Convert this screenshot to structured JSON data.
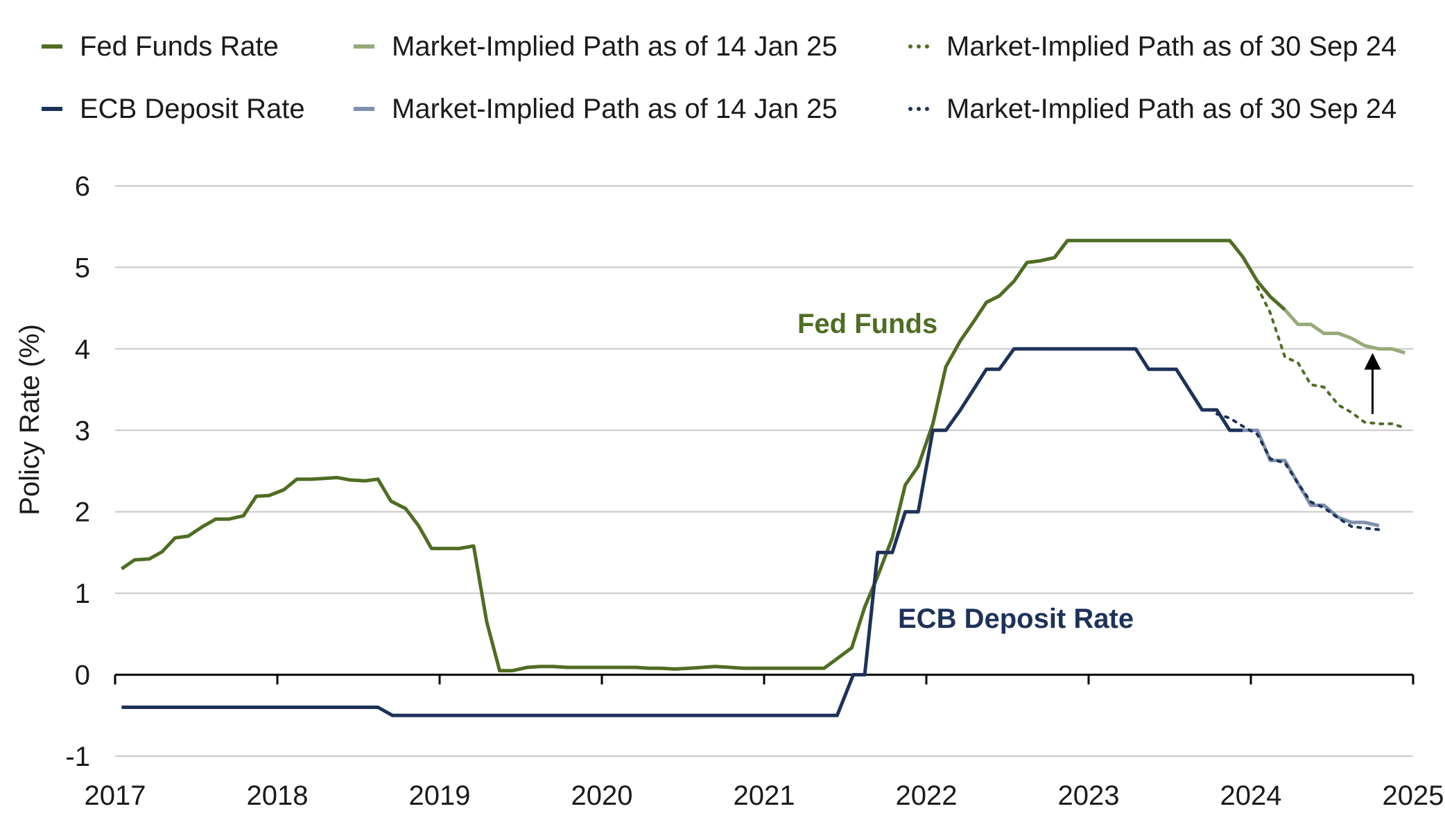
{
  "legend": [
    {
      "label": "Fed Funds Rate",
      "color": "#4f6d23",
      "style": "solid"
    },
    {
      "label": "Market-Implied Path as of 14 Jan 25",
      "color": "#97ab7a",
      "style": "solid"
    },
    {
      "label": "Market-Implied Path as of 30 Sep 24",
      "color": "#4f6d23",
      "style": "dotted"
    },
    {
      "label": "ECB Deposit Rate",
      "color": "#1e3259",
      "style": "solid"
    },
    {
      "label": "Market-Implied Path as of 14 Jan 25",
      "color": "#7d90ad",
      "style": "solid"
    },
    {
      "label": "Market-Implied Path as of 30 Sep 24",
      "color": "#1e3259",
      "style": "dotted"
    }
  ],
  "chart_data": {
    "type": "line",
    "ylabel": "Policy Rate (%)",
    "xlabel": "",
    "ylim": [
      -1,
      6
    ],
    "xlim": [
      2017,
      2025
    ],
    "yticks": [
      "6",
      "5",
      "4",
      "3",
      "2",
      "1",
      "0",
      "-1"
    ],
    "xticks": [
      "2017",
      "2018",
      "2019",
      "2020",
      "2021",
      "2022",
      "2023",
      "2024",
      "2025"
    ],
    "grid": true,
    "annotations": [
      {
        "text": "Fed Funds",
        "color": "#4f6d23"
      },
      {
        "text": "ECB Deposit Rate",
        "color": "#1e3259"
      }
    ],
    "arrow": {
      "x": 2024.75,
      "from": 3.2,
      "to": 3.95
    },
    "series": [
      {
        "name": "Fed Funds Rate",
        "color": "#4f6d23",
        "style": "solid",
        "points": [
          [
            2017.04,
            1.3
          ],
          [
            2017.12,
            1.41
          ],
          [
            2017.21,
            1.42
          ],
          [
            2017.29,
            1.51
          ],
          [
            2017.37,
            1.68
          ],
          [
            2017.45,
            1.7
          ],
          [
            2017.54,
            1.82
          ],
          [
            2017.62,
            1.91
          ],
          [
            2017.7,
            1.91
          ],
          [
            2017.79,
            1.95
          ],
          [
            2017.87,
            2.19
          ],
          [
            2017.95,
            2.2
          ],
          [
            2018.04,
            2.27
          ],
          [
            2018.12,
            2.4
          ],
          [
            2018.21,
            2.4
          ],
          [
            2018.29,
            2.41
          ],
          [
            2018.37,
            2.42
          ],
          [
            2018.45,
            2.39
          ],
          [
            2018.54,
            2.38
          ],
          [
            2018.62,
            2.4
          ],
          [
            2018.7,
            2.13
          ],
          [
            2018.79,
            2.04
          ],
          [
            2018.87,
            1.83
          ],
          [
            2018.95,
            1.55
          ],
          [
            2019.04,
            1.55
          ],
          [
            2019.12,
            1.55
          ],
          [
            2019.21,
            1.58
          ],
          [
            2019.29,
            0.65
          ],
          [
            2019.37,
            0.05
          ],
          [
            2019.45,
            0.05
          ],
          [
            2019.54,
            0.09
          ],
          [
            2019.62,
            0.1
          ],
          [
            2019.7,
            0.1
          ],
          [
            2019.79,
            0.09
          ],
          [
            2019.87,
            0.09
          ],
          [
            2019.95,
            0.09
          ],
          [
            2020.04,
            0.09
          ],
          [
            2020.12,
            0.09
          ],
          [
            2020.21,
            0.09
          ],
          [
            2020.29,
            0.08
          ],
          [
            2020.37,
            0.08
          ],
          [
            2020.45,
            0.07
          ],
          [
            2020.54,
            0.08
          ],
          [
            2020.62,
            0.09
          ],
          [
            2020.7,
            0.1
          ],
          [
            2020.79,
            0.09
          ],
          [
            2020.87,
            0.08
          ],
          [
            2020.95,
            0.08
          ],
          [
            2021.04,
            0.08
          ],
          [
            2021.12,
            0.08
          ],
          [
            2021.21,
            0.08
          ],
          [
            2021.29,
            0.08
          ],
          [
            2021.37,
            0.08
          ],
          [
            2021.54,
            0.33
          ],
          [
            2021.62,
            0.83
          ],
          [
            2021.7,
            1.21
          ],
          [
            2021.79,
            1.68
          ],
          [
            2021.87,
            2.33
          ],
          [
            2021.95,
            2.56
          ],
          [
            2022.04,
            3.08
          ],
          [
            2022.12,
            3.78
          ],
          [
            2022.21,
            4.1
          ],
          [
            2022.29,
            4.33
          ],
          [
            2022.37,
            4.57
          ],
          [
            2022.45,
            4.65
          ],
          [
            2022.54,
            4.83
          ],
          [
            2022.62,
            5.06
          ],
          [
            2022.7,
            5.08
          ],
          [
            2022.79,
            5.12
          ],
          [
            2022.87,
            5.33
          ],
          [
            2022.95,
            5.33
          ],
          [
            2023.04,
            5.33
          ],
          [
            2023.12,
            5.33
          ],
          [
            2023.21,
            5.33
          ],
          [
            2023.29,
            5.33
          ],
          [
            2023.37,
            5.33
          ],
          [
            2023.45,
            5.33
          ],
          [
            2023.54,
            5.33
          ],
          [
            2023.62,
            5.33
          ],
          [
            2023.7,
            5.33
          ],
          [
            2023.79,
            5.33
          ],
          [
            2023.87,
            5.33
          ],
          [
            2023.95,
            5.13
          ],
          [
            2024.04,
            4.83
          ],
          [
            2024.12,
            4.64
          ],
          [
            2024.21,
            4.48
          ]
        ]
      },
      {
        "name": "Market-Implied Path as of 14 Jan 25",
        "color": "#97ab7a",
        "style": "solid",
        "points": [
          [
            2024.21,
            4.48
          ],
          [
            2024.29,
            4.3
          ],
          [
            2024.37,
            4.3
          ],
          [
            2024.45,
            4.19
          ],
          [
            2024.54,
            4.19
          ],
          [
            2024.62,
            4.13
          ],
          [
            2024.7,
            4.04
          ],
          [
            2024.79,
            4.0
          ],
          [
            2024.87,
            4.0
          ],
          [
            2024.95,
            3.95
          ]
        ]
      },
      {
        "name": "Market-Implied Path as of 30 Sep 24",
        "color": "#4f6d23",
        "style": "dotted",
        "points": [
          [
            2024.04,
            4.76
          ],
          [
            2024.12,
            4.44
          ],
          [
            2024.21,
            3.9
          ],
          [
            2024.29,
            3.83
          ],
          [
            2024.37,
            3.56
          ],
          [
            2024.45,
            3.53
          ],
          [
            2024.54,
            3.31
          ],
          [
            2024.62,
            3.22
          ],
          [
            2024.7,
            3.1
          ],
          [
            2024.79,
            3.08
          ],
          [
            2024.87,
            3.08
          ],
          [
            2024.95,
            3.03
          ]
        ]
      },
      {
        "name": "ECB Deposit Rate",
        "color": "#1e3259",
        "style": "solid",
        "points": [
          [
            2017.04,
            -0.4
          ],
          [
            2018.62,
            -0.4
          ],
          [
            2018.71,
            -0.5
          ],
          [
            2021.45,
            -0.5
          ],
          [
            2021.55,
            0.0
          ],
          [
            2021.62,
            0.0
          ],
          [
            2021.7,
            1.5
          ],
          [
            2021.79,
            1.5
          ],
          [
            2021.87,
            2.0
          ],
          [
            2021.95,
            2.0
          ],
          [
            2022.04,
            3.0
          ],
          [
            2022.12,
            3.0
          ],
          [
            2022.21,
            3.25
          ],
          [
            2022.29,
            3.5
          ],
          [
            2022.37,
            3.75
          ],
          [
            2022.45,
            3.75
          ],
          [
            2022.54,
            4.0
          ],
          [
            2022.62,
            4.0
          ],
          [
            2022.7,
            4.0
          ],
          [
            2022.79,
            4.0
          ],
          [
            2022.87,
            4.0
          ],
          [
            2022.95,
            4.0
          ],
          [
            2023.04,
            4.0
          ],
          [
            2023.12,
            4.0
          ],
          [
            2023.21,
            4.0
          ],
          [
            2023.29,
            4.0
          ],
          [
            2023.37,
            3.75
          ],
          [
            2023.45,
            3.75
          ],
          [
            2023.54,
            3.75
          ],
          [
            2023.62,
            3.5
          ],
          [
            2023.7,
            3.25
          ],
          [
            2023.79,
            3.25
          ],
          [
            2023.87,
            3.0
          ],
          [
            2023.95,
            3.0
          ]
        ]
      },
      {
        "name": "Market-Implied Path as of 14 Jan 25",
        "color": "#7d90ad",
        "style": "solid",
        "points": [
          [
            2023.95,
            3.0
          ],
          [
            2024.04,
            3.0
          ],
          [
            2024.12,
            2.63
          ],
          [
            2024.21,
            2.63
          ],
          [
            2024.29,
            2.35
          ],
          [
            2024.37,
            2.08
          ],
          [
            2024.45,
            2.08
          ],
          [
            2024.54,
            1.93
          ],
          [
            2024.62,
            1.87
          ],
          [
            2024.7,
            1.87
          ],
          [
            2024.79,
            1.83
          ]
        ]
      },
      {
        "name": "Market-Implied Path as of 30 Sep 24",
        "color": "#1e3259",
        "style": "dotted",
        "points": [
          [
            2023.79,
            3.2
          ],
          [
            2023.87,
            3.15
          ],
          [
            2023.95,
            3.05
          ],
          [
            2024.04,
            2.95
          ],
          [
            2024.12,
            2.65
          ],
          [
            2024.21,
            2.6
          ],
          [
            2024.29,
            2.35
          ],
          [
            2024.37,
            2.12
          ],
          [
            2024.45,
            2.05
          ],
          [
            2024.54,
            1.92
          ],
          [
            2024.62,
            1.82
          ],
          [
            2024.7,
            1.8
          ],
          [
            2024.79,
            1.78
          ]
        ]
      }
    ]
  }
}
